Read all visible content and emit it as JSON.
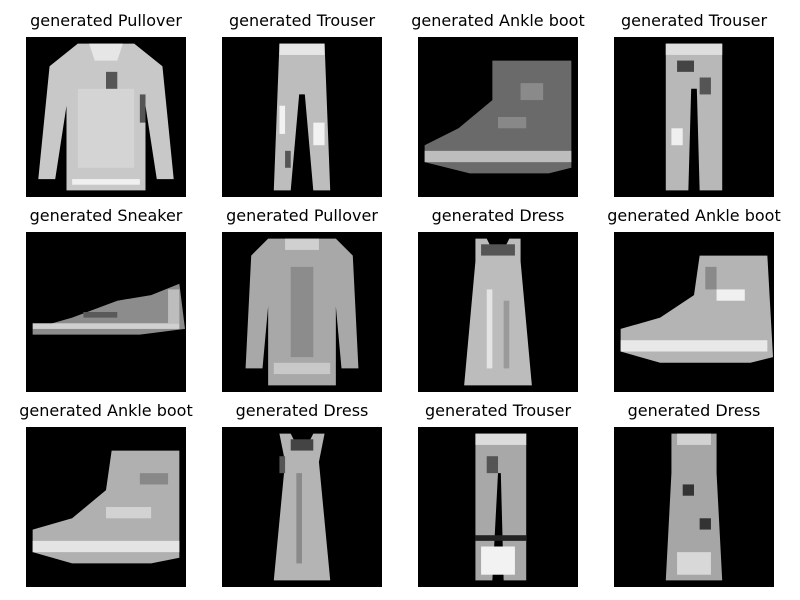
{
  "figure": {
    "background_color": "#ffffff",
    "image_color": "#000000",
    "panels": [
      {
        "title": "generated Pullover",
        "item": "pullover"
      },
      {
        "title": "generated Trouser",
        "item": "trouser"
      },
      {
        "title": "generated Ankle boot",
        "item": "ankle-boot"
      },
      {
        "title": "generated Trouser",
        "item": "trouser"
      },
      {
        "title": "generated Sneaker",
        "item": "sneaker"
      },
      {
        "title": "generated Pullover",
        "item": "pullover"
      },
      {
        "title": "generated Dress",
        "item": "dress"
      },
      {
        "title": "generated Ankle boot",
        "item": "ankle-boot"
      },
      {
        "title": "generated Ankle boot",
        "item": "ankle-boot"
      },
      {
        "title": "generated Dress",
        "item": "dress"
      },
      {
        "title": "generated Trouser",
        "item": "trouser"
      },
      {
        "title": "generated Dress",
        "item": "dress"
      }
    ]
  }
}
